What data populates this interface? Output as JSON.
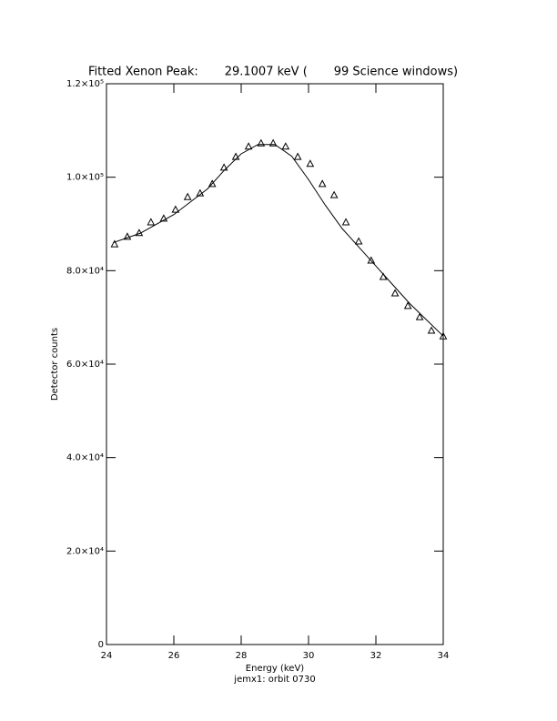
{
  "chart_data": {
    "type": "scatter",
    "title": "Fitted Xenon Peak:       29.1007 keV (       99 Science windows)",
    "x_label": "Energy (keV)",
    "subtitle": "jemx1: orbit 0730",
    "y_label": "Detector counts",
    "xlim": [
      24,
      34
    ],
    "xticks": [
      24,
      26,
      28,
      30,
      32,
      34
    ],
    "ylim": [
      0,
      120000
    ],
    "yticks": [
      0,
      {
        "value": 20000,
        "label": "2.0×10⁴"
      },
      {
        "value": 40000,
        "label": "4.0×10⁴"
      },
      {
        "value": 60000,
        "label": "6.0×10⁴"
      },
      {
        "value": 80000,
        "label": "8.0×10⁴"
      },
      {
        "value": 100000,
        "label": "1.0×10⁵"
      },
      {
        "value": 120000,
        "label": "1.2×10⁵"
      }
    ],
    "series": [
      {
        "type": "scatter",
        "color": "#000000",
        "x": [
          24.24,
          24.62,
          24.97,
          25.32,
          25.7,
          26.05,
          26.41,
          26.78,
          27.14,
          27.49,
          27.84,
          28.22,
          28.59,
          28.95,
          29.32,
          29.68,
          30.05,
          30.41,
          30.76,
          31.11,
          31.49,
          31.86,
          32.22,
          32.57,
          32.95,
          33.3,
          33.65,
          34.0
        ],
        "values": [
          85700,
          87300,
          88100,
          90400,
          91200,
          93100,
          95800,
          96600,
          98600,
          102100,
          104400,
          106600,
          107300,
          107300,
          106600,
          104400,
          102900,
          98600,
          96200,
          90400,
          86300,
          82200,
          78700,
          75200,
          72500,
          70100,
          67200,
          66000
        ]
      },
      {
        "type": "line",
        "color": "#000000",
        "x": [
          24.2,
          25,
          26,
          27,
          27.5,
          28,
          28.5,
          29,
          29.5,
          30,
          30.5,
          31,
          31.5,
          32,
          32.5,
          33,
          33.5,
          34
        ],
        "values": [
          86000,
          88000,
          92000,
          97500,
          101500,
          105000,
          107000,
          107000,
          104500,
          99500,
          94000,
          89000,
          85000,
          81000,
          77000,
          73000,
          69500,
          66000
        ]
      }
    ]
  }
}
